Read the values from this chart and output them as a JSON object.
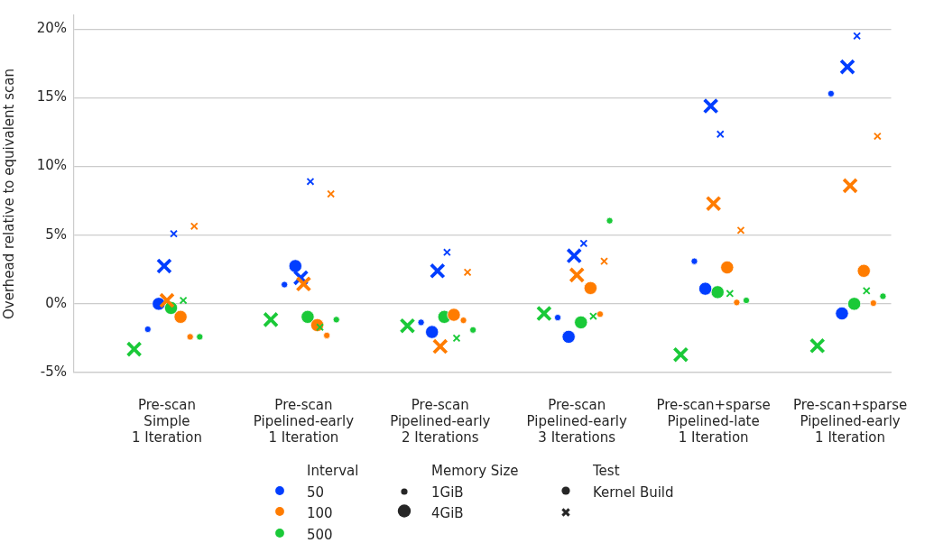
{
  "chart_data": {
    "type": "bubble",
    "ylabel": "Overhead relative to equivalent scan",
    "legend_title": "Interval",
    "annotations": [
      "Memory Size",
      "Test",
      "Kernel Build"
    ],
    "size_legend": [
      {
        "value": 1,
        "label": "1GiB"
      },
      {
        "value": 4,
        "label": "4GiB"
      }
    ],
    "categories": [
      "Pre-scan\nSimple\n1 Iteration",
      "Pre-scan\nPipelined-early\n1 Iteration",
      "Pre-scan\nPipelined-early\n2 Iterations",
      "Pre-scan\nPipelined-early\n3 Iterations",
      "Pre-scan+sparse\nPipelined-late\n1 Iteration",
      "Pre-scan+sparse\nPipelined-early\n1 Iteration"
    ],
    "ylim": [
      -5,
      21
    ],
    "yticks": [
      {
        "value": -5,
        "label": "-5%"
      },
      {
        "value": 0,
        "label": "0%"
      },
      {
        "value": 5,
        "label": "5%"
      },
      {
        "value": 10,
        "label": "10%"
      },
      {
        "value": 15,
        "label": "15%"
      },
      {
        "value": 20,
        "label": "20%"
      }
    ],
    "grid": "y",
    "legend": "bottom",
    "series": [
      {
        "name": "50",
        "color": "#023eff",
        "marker": "circle",
        "values": [
          -1.85,
          1.4,
          -1.35,
          -1.0,
          3.1,
          15.3
        ],
        "sizes": [
          1,
          1,
          1,
          1,
          1,
          1
        ]
      },
      {
        "color": "#023eff",
        "marker": "circle",
        "values": [
          0.0,
          2.75,
          -2.05,
          -2.4,
          1.1,
          -0.7
        ],
        "sizes": [
          4,
          4,
          4,
          4,
          4,
          4
        ]
      },
      {
        "color": "#023eff",
        "marker": "cross",
        "values": [
          5.1,
          8.9,
          3.75,
          4.4,
          12.35,
          19.5
        ],
        "sizes": [
          1,
          1,
          1,
          1,
          1,
          1
        ]
      },
      {
        "color": "#023eff",
        "marker": "cross",
        "values": [
          2.75,
          1.9,
          2.4,
          3.5,
          14.4,
          17.25
        ],
        "sizes": [
          4,
          4,
          4,
          4,
          4,
          4
        ]
      },
      {
        "name": "100",
        "color": "#ff7c00",
        "marker": "circle",
        "values": [
          -2.4,
          -2.3,
          -1.2,
          -0.75,
          0.1,
          0.05
        ],
        "sizes": [
          1,
          1,
          1,
          1,
          1,
          1
        ]
      },
      {
        "color": "#ff7c00",
        "marker": "circle",
        "values": [
          -0.95,
          -1.55,
          -0.8,
          1.15,
          2.65,
          2.4
        ],
        "sizes": [
          4,
          4,
          4,
          4,
          4,
          4
        ]
      },
      {
        "color": "#ff7c00",
        "marker": "cross",
        "values": [
          5.65,
          8.0,
          2.3,
          3.1,
          5.35,
          12.2
        ],
        "sizes": [
          1,
          1,
          1,
          1,
          1,
          1
        ]
      },
      {
        "color": "#ff7c00",
        "marker": "cross",
        "values": [
          0.25,
          1.45,
          -3.1,
          2.1,
          7.3,
          8.6
        ],
        "sizes": [
          4,
          4,
          4,
          4,
          4,
          4
        ]
      },
      {
        "name": "500",
        "color": "#1ac938",
        "marker": "circle",
        "values": [
          -2.4,
          -1.15,
          -1.9,
          6.05,
          0.25,
          0.55
        ],
        "sizes": [
          1,
          1,
          1,
          1,
          1,
          1
        ]
      },
      {
        "color": "#1ac938",
        "marker": "circle",
        "values": [
          -0.3,
          -0.95,
          -0.95,
          -1.35,
          0.85,
          0.0
        ],
        "sizes": [
          4,
          4,
          4,
          4,
          4,
          4
        ]
      },
      {
        "color": "#1ac938",
        "marker": "cross",
        "values": [
          0.25,
          -1.7,
          -2.5,
          -0.9,
          0.75,
          0.95
        ],
        "sizes": [
          1,
          1,
          1,
          1,
          1,
          1
        ]
      },
      {
        "color": "#1ac938",
        "marker": "cross",
        "values": [
          -3.3,
          -1.15,
          -1.6,
          -0.7,
          -3.7,
          -3.05
        ],
        "sizes": [
          4,
          4,
          4,
          4,
          4,
          4
        ]
      }
    ]
  }
}
